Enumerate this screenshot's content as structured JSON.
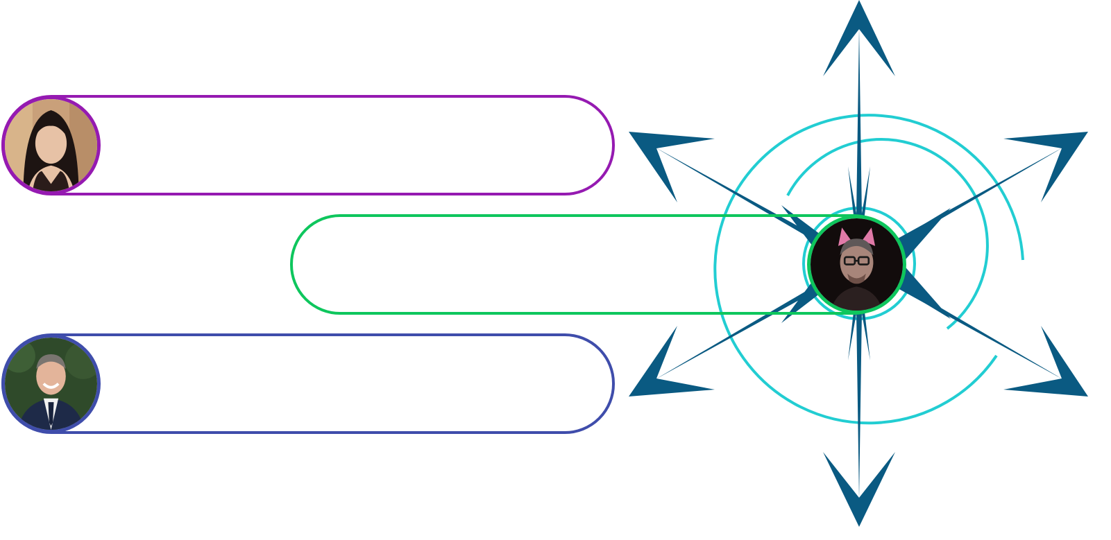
{
  "colors": {
    "compass_navy": "#0a5a82",
    "compass_teal": "#22cdd2"
  },
  "logo": {
    "icon": "compass-rose-icon"
  },
  "participants": [
    {
      "label": "",
      "avatar_icon": "woman-portrait-avatar",
      "border_color": "#951ab1"
    },
    {
      "label": "",
      "avatar_icon": "man-with-cat-ears-glasses-avatar",
      "border_color": "#0ec65d"
    },
    {
      "label": "",
      "avatar_icon": "man-in-suit-portrait-avatar",
      "border_color": "#3f4dab"
    }
  ]
}
